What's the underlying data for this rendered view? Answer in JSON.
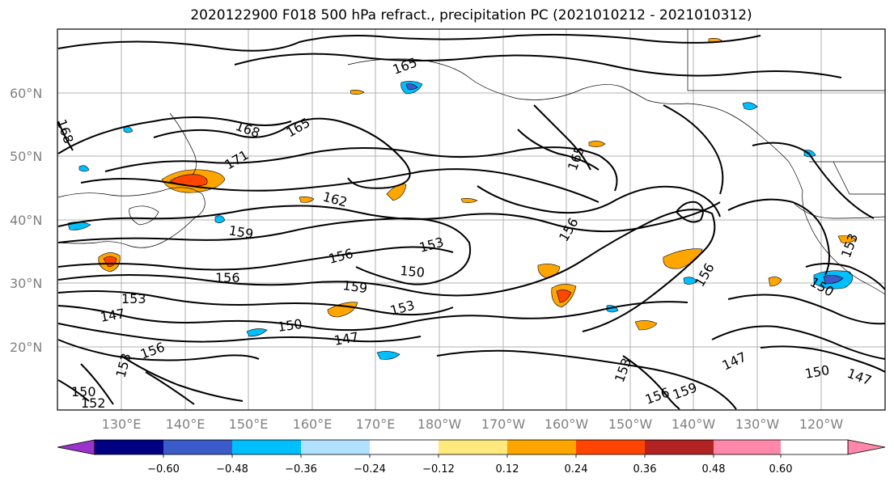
{
  "title": "2020122900 F018 500 hPa refract., precipitation PC (2021010212 - 2021010312)",
  "lat_labels": [
    "60°N",
    "50°N",
    "40°N",
    "30°N",
    "20°N"
  ],
  "lon_labels": [
    "130°E",
    "140°E",
    "150°E",
    "160°E",
    "170°E",
    "180°W",
    "170°W",
    "160°W",
    "150°W",
    "140°W",
    "130°W",
    "120°W"
  ],
  "contour_labels": [
    "168",
    "165",
    "171",
    "168",
    "162",
    "159",
    "156",
    "156",
    "153",
    "150",
    "159",
    "153",
    "156",
    "150",
    "147",
    "147",
    "153",
    "153",
    "150",
    "152",
    "165",
    "156",
    "156",
    "153",
    "156",
    "159",
    "147",
    "150",
    "147",
    "165",
    "150",
    "153"
  ],
  "colorbar": {
    "colors": [
      "#9933cc",
      "#000080",
      "#3a5bc8",
      "#00bfff",
      "#b0e2ff",
      "#ffffff",
      "#ffe97f",
      "#ffa500",
      "#ff4500",
      "#b22222",
      "#ff88aa"
    ],
    "tick_labels": [
      "−0.60",
      "−0.48",
      "−0.36",
      "−0.24",
      "−0.12",
      "0.12",
      "0.24",
      "0.36",
      "0.48",
      "0.60"
    ]
  }
}
